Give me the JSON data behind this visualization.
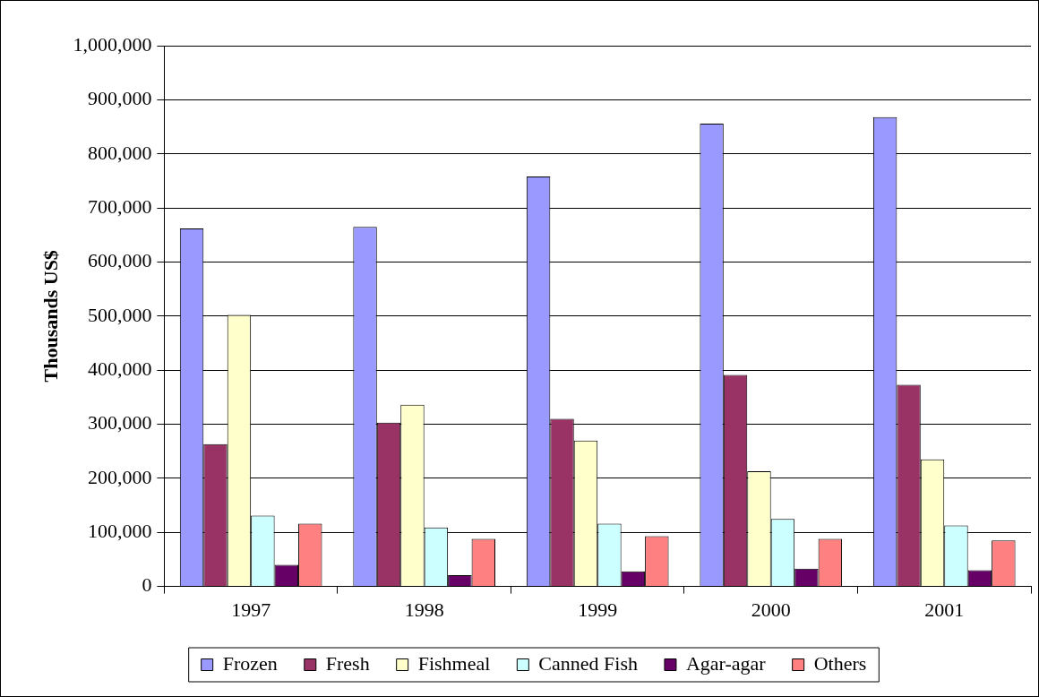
{
  "chart_data": {
    "type": "bar",
    "ylabel": "Thousands US$",
    "categories": [
      "1997",
      "1998",
      "1999",
      "2000",
      "2001"
    ],
    "series": [
      {
        "name": "Frozen",
        "color": "#9999ff",
        "values": [
          662000,
          665000,
          758000,
          856000,
          868000
        ]
      },
      {
        "name": "Fresh",
        "color": "#993366",
        "values": [
          263000,
          303000,
          310000,
          391000,
          373000
        ]
      },
      {
        "name": "Fishmeal",
        "color": "#ffffcc",
        "values": [
          502000,
          336000,
          270000,
          213000,
          235000
        ]
      },
      {
        "name": "Canned Fish",
        "color": "#ccffff",
        "values": [
          131000,
          109000,
          116000,
          125000,
          113000
        ]
      },
      {
        "name": "Agar-agar",
        "color": "#660066",
        "values": [
          40000,
          21000,
          28000,
          33000,
          30000
        ]
      },
      {
        "name": "Others",
        "color": "#ff8080",
        "values": [
          116000,
          88000,
          93000,
          88000,
          85000
        ]
      }
    ],
    "ylim": [
      0,
      1000000
    ],
    "yticks": [
      0,
      {
        "value": 100000,
        "label": "100,000"
      },
      {
        "value": 200000,
        "label": "200,000"
      },
      {
        "value": 300000,
        "label": "300,000"
      },
      {
        "value": 400000,
        "label": "400,000"
      },
      {
        "value": 500000,
        "label": "500,000"
      },
      {
        "value": 600000,
        "label": "600,000"
      },
      {
        "value": 700000,
        "label": "700,000"
      },
      {
        "value": 800000,
        "label": "800,000"
      },
      {
        "value": 900000,
        "label": "900,000"
      },
      {
        "value": 1000000,
        "label": "1,000,000"
      }
    ],
    "grid": "y",
    "legend": "bottom"
  }
}
